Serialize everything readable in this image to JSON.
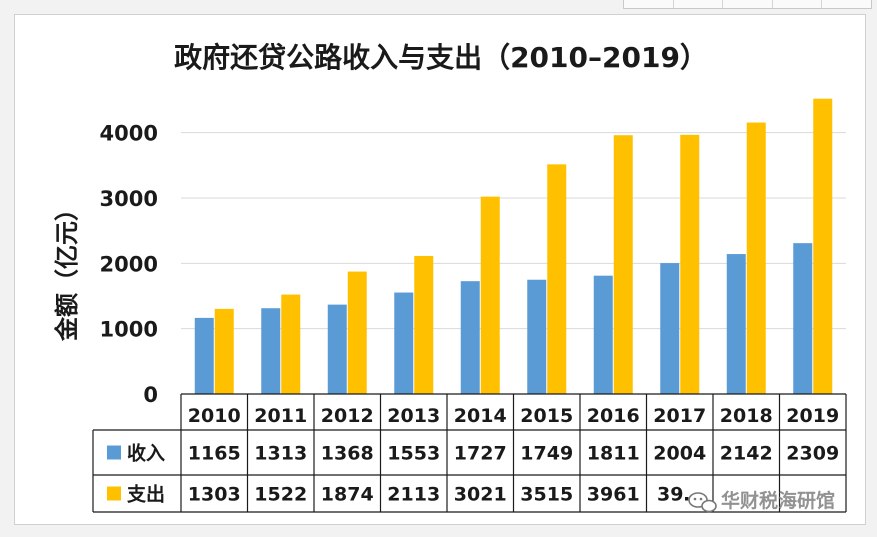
{
  "chart_data": {
    "type": "bar",
    "title": "政府还贷公路收入与支出（2010–2019）",
    "ylabel": "金额（亿元）",
    "xlabel": "",
    "ylim": [
      0,
      4500
    ],
    "yticks": [
      0,
      1000,
      2000,
      3000,
      4000
    ],
    "grid": true,
    "legend": "data-table-left",
    "categories": [
      "2010",
      "2011",
      "2012",
      "2013",
      "2014",
      "2015",
      "2016",
      "2017",
      "2018",
      "2019"
    ],
    "series": [
      {
        "name": "收入",
        "color": "#5b9bd5",
        "values": [
          1165,
          1313,
          1368,
          1553,
          1727,
          1749,
          1811,
          2004,
          2142,
          2309
        ]
      },
      {
        "name": "支出",
        "color": "#ffc000",
        "values": [
          1303,
          1522,
          1874,
          2113,
          3021,
          3515,
          3961,
          3967,
          4155,
          4520
        ]
      }
    ],
    "table_cells": {
      "收入": [
        "1165",
        "1313",
        "1368",
        "1553",
        "1727",
        "1749",
        "1811",
        "2004",
        "2142",
        "2309"
      ],
      "支出": [
        "1303",
        "1522",
        "1874",
        "2113",
        "3021",
        "3515",
        "3961",
        "39…",
        "",
        ""
      ]
    }
  },
  "watermark": {
    "text": "华财税海研馆",
    "icon": "wechat-icon"
  }
}
